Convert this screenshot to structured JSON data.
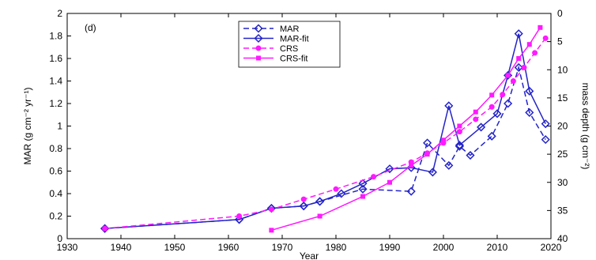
{
  "chart_data": {
    "type": "line",
    "panel_label": "(d)",
    "xlabel": "Year",
    "ylabel_left": "MAR (g cm⁻² yr⁻¹)",
    "ylabel_right": "mass depth (g cm⁻²)",
    "xlim": [
      1930,
      2020
    ],
    "ylim_left": [
      0,
      2
    ],
    "ylim_right": [
      0,
      40
    ],
    "right_axis_inverted": true,
    "x_ticks": [
      1930,
      1940,
      1950,
      1960,
      1970,
      1980,
      1990,
      2000,
      2010,
      2020
    ],
    "y_left_ticks": [
      0,
      0.2,
      0.4,
      0.6,
      0.8,
      1,
      1.2,
      1.4,
      1.6,
      1.8,
      2
    ],
    "y_right_ticks": [
      0,
      5,
      10,
      15,
      20,
      25,
      30,
      35,
      40
    ],
    "legend_position": "top-center",
    "series": [
      {
        "name": "MAR",
        "color": "#2424c8",
        "style": "dashed",
        "marker": "diamond",
        "x": [
          1937,
          1962,
          1968,
          1974,
          1977,
          1985,
          1994,
          1997,
          2001,
          2003,
          2005,
          2009,
          2012,
          2014,
          2016,
          2019
        ],
        "y": [
          0.09,
          0.17,
          0.27,
          0.29,
          0.33,
          0.44,
          0.42,
          0.85,
          0.65,
          0.82,
          0.74,
          0.91,
          1.2,
          1.52,
          1.12,
          0.88
        ]
      },
      {
        "name": "MAR-fit",
        "color": "#2424c8",
        "style": "solid",
        "marker": "diamond",
        "x": [
          1937,
          1962,
          1968,
          1974,
          1977,
          1981,
          1985,
          1990,
          1994,
          1998,
          2001,
          2003,
          2007,
          2010,
          2012,
          2014,
          2016,
          2019
        ],
        "y": [
          0.09,
          0.17,
          0.27,
          0.29,
          0.33,
          0.4,
          0.49,
          0.62,
          0.63,
          0.59,
          1.18,
          0.83,
          0.99,
          1.11,
          1.45,
          1.82,
          1.31,
          1.02
        ]
      },
      {
        "name": "CRS",
        "color": "#ff1aff",
        "style": "dashed",
        "marker": "dot",
        "x": [
          1937,
          1962,
          1968,
          1974,
          1980,
          1987,
          1994,
          1997,
          2000,
          2003,
          2006,
          2009,
          2011,
          2013,
          2015,
          2017,
          2019
        ],
        "y": [
          0.09,
          0.2,
          0.26,
          0.35,
          0.44,
          0.55,
          0.68,
          0.76,
          0.85,
          0.95,
          1.06,
          1.17,
          1.28,
          1.4,
          1.52,
          1.65,
          1.78
        ]
      },
      {
        "name": "CRS-fit",
        "color": "#ff1aff",
        "style": "solid",
        "marker": "square",
        "right_axis": true,
        "x": [
          1968,
          1977,
          1985,
          1990,
          1994,
          1997,
          2000,
          2003,
          2006,
          2009,
          2012,
          2014,
          2016,
          2018
        ],
        "y": [
          38.5,
          36.0,
          32.5,
          30.0,
          27.0,
          25.0,
          22.5,
          20.0,
          17.5,
          14.5,
          11.0,
          8.0,
          5.5,
          2.5
        ]
      }
    ]
  }
}
